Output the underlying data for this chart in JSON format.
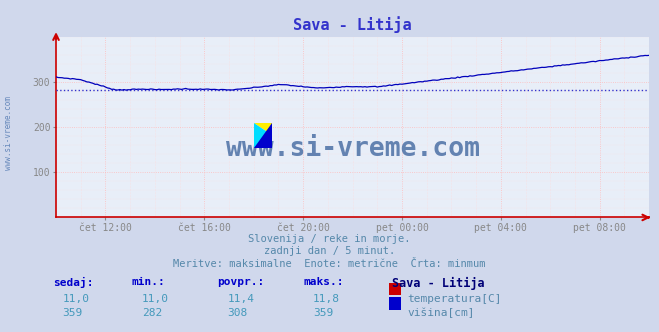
{
  "title": "Sava - Litija",
  "title_color": "#3333cc",
  "background_color": "#d0d8ec",
  "plot_bg_color": "#e8eef8",
  "line_color": "#0000bb",
  "avg_line_color": "#3333cc",
  "avg_line_value": 282,
  "ylim": [
    0,
    400
  ],
  "yticks": [
    100,
    200,
    300
  ],
  "watermark": "www.si-vreme.com",
  "watermark_color": "#5577aa",
  "left_label": "www.si-vreme.com",
  "left_label_color": "#6688bb",
  "subtitle1": "Slovenija / reke in morje.",
  "subtitle2": "zadnji dan / 5 minut.",
  "subtitle3": "Meritve: maksimalne  Enote: metrične  Črta: minmum",
  "subtitle_color": "#5588aa",
  "table_headers": [
    "sedaj:",
    "min.:",
    "povpr.:",
    "maks.:"
  ],
  "table_header_color": "#0000cc",
  "table_row1": [
    "11,0",
    "11,0",
    "11,4",
    "11,8"
  ],
  "table_row2": [
    "359",
    "282",
    "308",
    "359"
  ],
  "table_value_color": "#4499bb",
  "station_label": "Sava - Litija",
  "station_label_color": "#000077",
  "legend_labels": [
    "temperatura[C]",
    "višina[cm]"
  ],
  "legend_colors": [
    "#cc0000",
    "#0000cc"
  ],
  "xtick_labels": [
    "čet 12:00",
    "čet 16:00",
    "čet 20:00",
    "pet 00:00",
    "pet 04:00",
    "pet 08:00"
  ],
  "xtick_positions": [
    24,
    72,
    120,
    168,
    216,
    264
  ],
  "n_points": 289,
  "grid_color": "#ffbbbb",
  "spine_color": "#cc0000"
}
